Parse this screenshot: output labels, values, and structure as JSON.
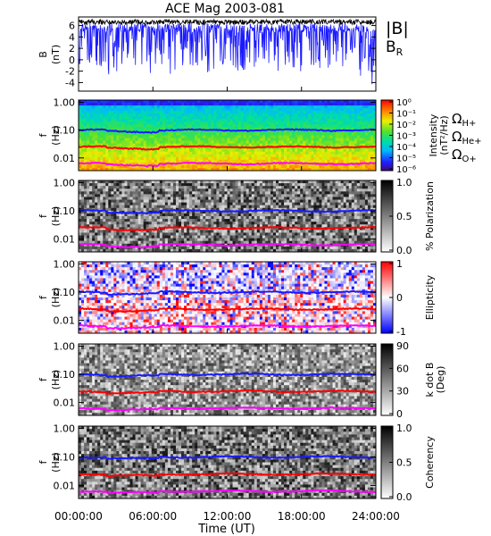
{
  "title": "ACE Mag 2003-081",
  "x_axis": {
    "label": "Time (UT)",
    "ticks": [
      "00:00:00",
      "06:00:00",
      "12:00:00",
      "18:00:00",
      "24:00:00"
    ],
    "range_hours": [
      0,
      24
    ]
  },
  "colors": {
    "b_total": "#000000",
    "b_r": "#1a1aff",
    "h_plus": "#1a1aff",
    "he_plus": "#ff0000",
    "o_plus": "#ff00ff"
  },
  "chart_data": [
    {
      "type": "line",
      "panel": "magnetic-field",
      "ylabel": "B",
      "yunit": "(nT)",
      "yticks": [
        "6",
        "4",
        "2",
        "0",
        "-2",
        "-4"
      ],
      "ylim": [
        -5.5,
        7.5
      ],
      "legend": [
        {
          "symbol": "|B|",
          "sub": "",
          "color": "#000000"
        },
        {
          "symbol": "B",
          "sub": "R",
          "color": "#1a1aff"
        }
      ],
      "series": [
        {
          "name": "|B|",
          "approx_level_nT": 6.6
        },
        {
          "name": "B_R",
          "approx_range_nT": [
            -4.5,
            6.5
          ]
        }
      ]
    },
    {
      "type": "heatmap",
      "panel": "power-spectrum",
      "ylabel": "f",
      "yunit": "(Hz)",
      "yticks": [
        "1.00",
        "0.10",
        "0.01"
      ],
      "colorbar": {
        "label": "Intensity",
        "unit": "(nT²/Hz)",
        "ticks": [
          "10⁰",
          "10⁻¹",
          "10⁻²",
          "10⁻³",
          "10⁻⁴",
          "10⁻⁵",
          "10⁻⁶"
        ],
        "scale": "rainbow"
      },
      "legend": [
        {
          "symbol": "Ω",
          "sub": "H+",
          "color": "#1a1aff"
        },
        {
          "symbol": "Ω",
          "sub": "He+",
          "color": "#ff0000"
        },
        {
          "symbol": "Ω",
          "sub": "O+",
          "color": "#ff00ff"
        }
      ]
    },
    {
      "type": "heatmap",
      "panel": "polarization",
      "ylabel": "f",
      "yunit": "(Hz)",
      "yticks": [
        "1.00",
        "0.10",
        "0.01"
      ],
      "colorbar": {
        "label": "% Polarization",
        "unit": "",
        "ticks": [
          "1.0",
          "0.5",
          "0.0"
        ],
        "scale": "gray"
      }
    },
    {
      "type": "heatmap",
      "panel": "ellipticity",
      "ylabel": "f",
      "yunit": "(Hz)",
      "yticks": [
        "1.00",
        "0.10",
        "0.01"
      ],
      "colorbar": {
        "label": "Ellipticity",
        "unit": "",
        "ticks": [
          "1",
          "0",
          "-1"
        ],
        "scale": "bluewhitered"
      }
    },
    {
      "type": "heatmap",
      "panel": "k-dot-b",
      "ylabel": "f",
      "yunit": "(Hz)",
      "yticks": [
        "1.00",
        "0.10",
        "0.01"
      ],
      "colorbar": {
        "label": "k dot B",
        "unit": "(Deg)",
        "ticks": [
          "90",
          "60",
          "30",
          "0"
        ],
        "scale": "gray"
      }
    },
    {
      "type": "heatmap",
      "panel": "coherency",
      "ylabel": "f",
      "yunit": "(Hz)",
      "yticks": [
        "1.00",
        "0.10",
        "0.01"
      ],
      "colorbar": {
        "label": "Coherency",
        "unit": "",
        "ticks": [
          "1.0",
          "0.5",
          "0.0"
        ],
        "scale": "gray"
      }
    }
  ],
  "gyrofrequency_lines": [
    {
      "ion": "H+",
      "color": "#1a1aff",
      "approx_hz": 0.1
    },
    {
      "ion": "He+",
      "color": "#ff0000",
      "approx_hz": 0.025
    },
    {
      "ion": "O+",
      "color": "#ff00ff",
      "approx_hz": 0.0063
    }
  ]
}
